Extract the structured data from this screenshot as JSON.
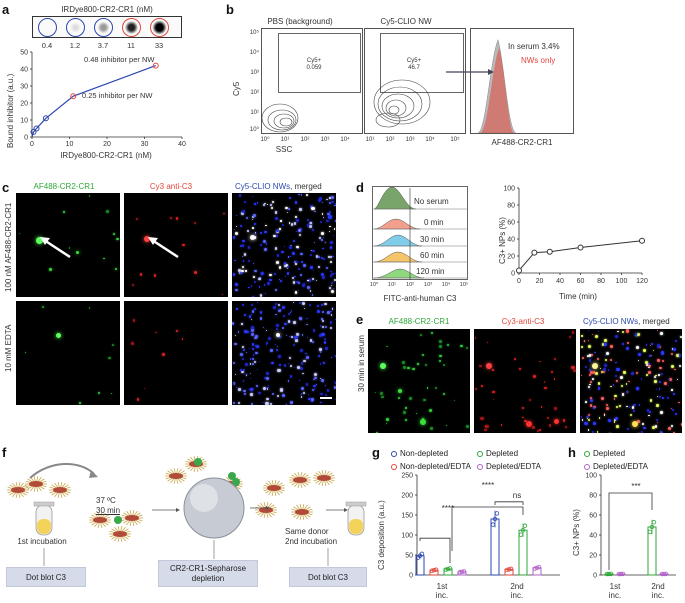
{
  "panels": {
    "a": {
      "label": "a",
      "title": "IRDye800-CR2-CR1 (nM)",
      "spot_values": [
        "0.4",
        "1.2",
        "3.7",
        "11",
        "33"
      ],
      "ylabel": "Bound inhibitor (a.u.)",
      "xlabel": "IRDye800-CR2-CR1 (nM)",
      "annot_1": "0.48 inhibitor per NW",
      "annot_2": "0.25 inhibitor per NW",
      "chart_data": {
        "type": "line",
        "x": [
          0.4,
          1.2,
          3.7,
          11,
          33
        ],
        "y": [
          3,
          5,
          11,
          24,
          42
        ],
        "xlim": [
          0,
          40
        ],
        "ylim": [
          0,
          50
        ],
        "xticks": [
          "0",
          "10",
          "20",
          "30",
          "40"
        ],
        "yticks": [
          "0",
          "10",
          "20",
          "30",
          "40",
          "50"
        ]
      }
    },
    "b": {
      "label": "b",
      "title_1": "PBS (background)",
      "title_2": "Cy5-CLIO NW",
      "gate_1_name": "Cy5+",
      "gate_1_value": "0.059",
      "gate_2_name": "Cy5+",
      "gate_2_value": "46.7",
      "ylabel": "Cy5",
      "xlabel": "SSC",
      "hist_text_1": "In serum 3.4%",
      "hist_text_2": "NWs only",
      "hist_xlabel": "AF488-CR2-CR1",
      "yticks": [
        "10⁵",
        "10⁴",
        "10³",
        "10²",
        "10¹",
        "10⁰"
      ],
      "xticks": [
        "10⁰",
        "10¹",
        "10²",
        "10³",
        "10⁴",
        "10⁵"
      ],
      "colors": {
        "nw_only": "#e2463a",
        "serum": "#9a9a9a"
      }
    },
    "c": {
      "label": "c",
      "col_1": "AF488-CR2-CR1",
      "col_2": "Cy3 anti-C3",
      "col_3_a": "Cy5-CLIO NWs",
      "col_3_b": ", merged",
      "row_1": "100 nM AF488-CR2-CR1",
      "row_2": "10 mM EDTA"
    },
    "d": {
      "label": "d",
      "rows": [
        "No serum",
        "0 min",
        "30 min",
        "60 min",
        "120 min"
      ],
      "xlabel": "FITC-anti-human C3",
      "xticks": [
        "10⁰",
        "10¹",
        "10²",
        "10³",
        "10⁴",
        "10⁵"
      ],
      "ylabel": "C3+ NPs (%)",
      "time_label": "Time (min)",
      "chart_data": {
        "type": "line",
        "x": [
          0,
          15,
          30,
          60,
          120
        ],
        "y": [
          3,
          24,
          25,
          30,
          38
        ],
        "xlim": [
          0,
          120
        ],
        "ylim": [
          0,
          100
        ],
        "xticks": [
          "0",
          "20",
          "40",
          "60",
          "80",
          "100",
          "120"
        ],
        "yticks": [
          "0",
          "20",
          "40",
          "60",
          "80",
          "100"
        ]
      }
    },
    "e": {
      "label": "e",
      "col_1": "AF488-CR2-CR1",
      "col_2": "Cy3-anti-C3",
      "col_3_a": "Cy5-CLIO NWs",
      "col_3_b": ", merged",
      "row": "30 min in serum"
    },
    "f": {
      "label": "f",
      "temp": "37 ºC",
      "time": "30 min",
      "step_1": "1st incubation",
      "step_2": "Same donor",
      "step_3": "2nd incubation",
      "box_1": "Dot blot C3",
      "box_2": "CR2-CR1-Sepharose\ndepletion",
      "box_3": "Dot blot C3"
    },
    "g": {
      "label": "g",
      "legend": [
        "Non-depleted",
        "Depleted",
        "Non-depleted/EDTA",
        "Depleted/EDTA"
      ],
      "ylabel": "C3 deposition (a.u.)",
      "sig_1": "****",
      "sig_2": "****",
      "sig_3": "ns",
      "categories": [
        "1st\ninc.",
        "2nd\ninc."
      ],
      "colors": [
        "#2b48b0",
        "#2fa83a",
        "#e2463a",
        "#b063c8"
      ],
      "chart_data": {
        "type": "bar",
        "categories": [
          "1st inc.",
          "2nd inc."
        ],
        "series": [
          {
            "name": "Non-depleted",
            "values": [
              48,
              140
            ]
          },
          {
            "name": "Non-depleted/EDTA",
            "values": [
              12,
              14
            ]
          },
          {
            "name": "Depleted",
            "values": [
              15,
              112
            ]
          },
          {
            "name": "Depleted/EDTA",
            "values": [
              8,
              18
            ]
          }
        ],
        "ylim": [
          0,
          250
        ],
        "yticks": [
          "0",
          "50",
          "100",
          "150",
          "200",
          "250"
        ]
      }
    },
    "h": {
      "label": "h",
      "legend": [
        "Depleted",
        "Depleted/EDTA"
      ],
      "ylabel": "C3+ NPs (%)",
      "sig": "***",
      "categories": [
        "1st\ninc.",
        "2nd\ninc."
      ],
      "colors": [
        "#2fa83a",
        "#b063c8"
      ],
      "chart_data": {
        "type": "bar",
        "categories": [
          "1st inc.",
          "2nd inc."
        ],
        "series": [
          {
            "name": "Depleted",
            "values": [
              1,
              48
            ]
          },
          {
            "name": "Depleted/EDTA",
            "values": [
              1,
              1
            ]
          }
        ],
        "ylim": [
          0,
          100
        ],
        "yticks": [
          "0",
          "20",
          "40",
          "60",
          "80",
          "100"
        ]
      }
    }
  }
}
